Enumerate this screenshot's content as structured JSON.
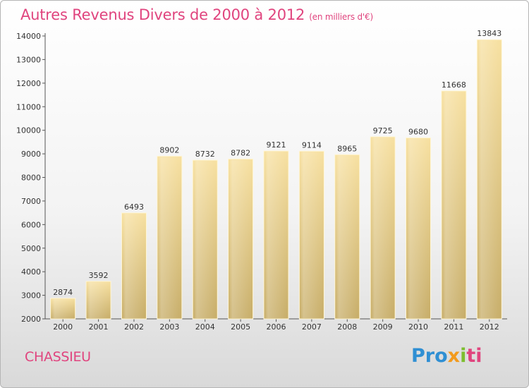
{
  "header": {
    "title": "Autres Revenus Divers de 2000 à 2012",
    "unit": "(en milliers d'€)"
  },
  "footer": {
    "city": "CHASSIEU",
    "logo": [
      "Pro",
      "x",
      "i",
      "ti"
    ]
  },
  "colors": {
    "title": "#e0447e",
    "bar_light": "#f7e0a0",
    "bar_dark": "#c7ad68",
    "logo_blue": "#2f8fd3",
    "logo_orange": "#f29a1d",
    "logo_green": "#7dbe2f",
    "logo_pink": "#e0447e"
  },
  "chart_data": {
    "type": "bar",
    "categories": [
      "2000",
      "2001",
      "2002",
      "2003",
      "2004",
      "2005",
      "2006",
      "2007",
      "2008",
      "2009",
      "2010",
      "2011",
      "2012"
    ],
    "values": [
      2874,
      3592,
      6493,
      8902,
      8732,
      8782,
      9121,
      9114,
      8965,
      9725,
      9680,
      11668,
      13843
    ],
    "ylim": [
      2000,
      14000
    ],
    "yticks": [
      2000,
      3000,
      4000,
      5000,
      6000,
      7000,
      8000,
      9000,
      10000,
      11000,
      12000,
      13000,
      14000
    ],
    "grid": false,
    "data_labels": true
  }
}
